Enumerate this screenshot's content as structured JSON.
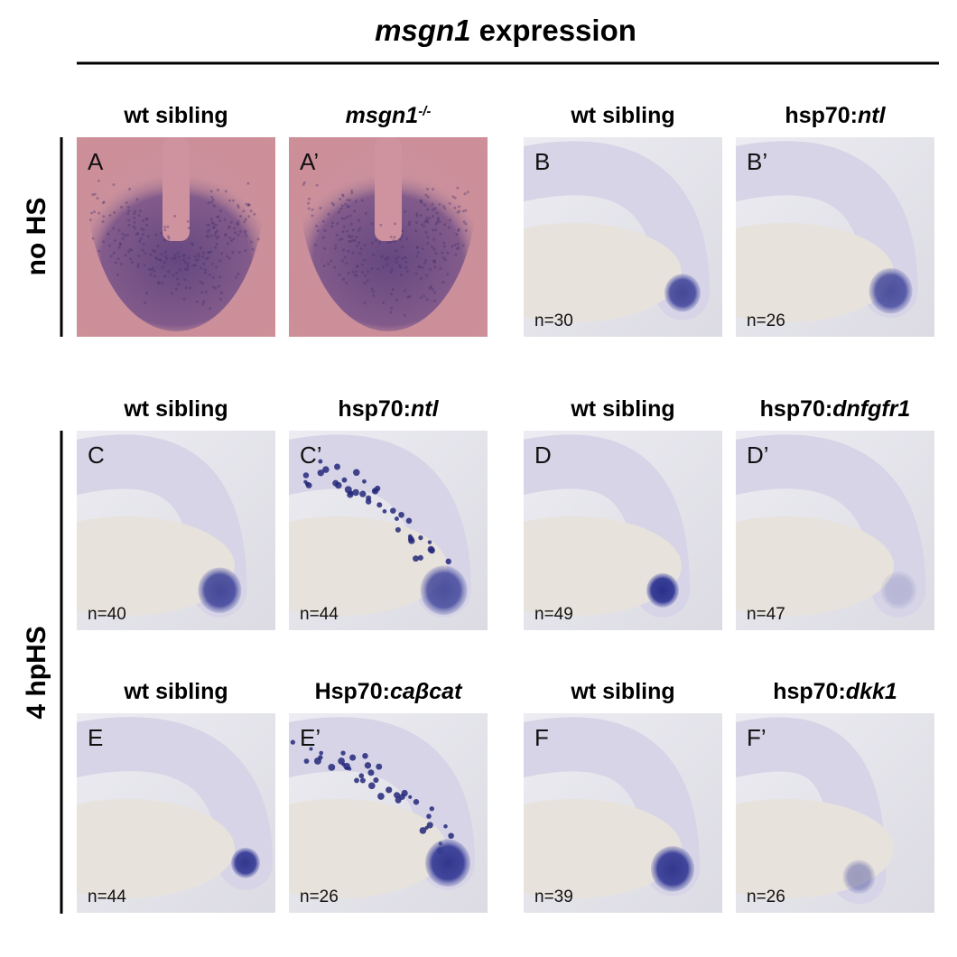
{
  "title": [
    {
      "text": "msgn1",
      "italic": true
    },
    {
      "text": " expression"
    }
  ],
  "side_labels": [
    "no HS",
    "4 hpHS"
  ],
  "panel_rows": [
    [
      {
        "header": [
          {
            "text": "wt sibling"
          }
        ],
        "letter": "A"
      },
      {
        "header": [
          {
            "text": "msgn1",
            "italic": true
          },
          {
            "text": "-/-",
            "italic": true,
            "sup": true
          }
        ],
        "letter": "A’"
      },
      {
        "header": [
          {
            "text": "wt sibling"
          }
        ],
        "letter": "B",
        "n": "n=30"
      },
      {
        "header": [
          {
            "text": "hsp70:"
          },
          {
            "text": "ntl",
            "italic": true
          }
        ],
        "letter": "B’",
        "n": "n=26"
      }
    ],
    [
      {
        "header": [
          {
            "text": "wt sibling"
          }
        ],
        "letter": "C",
        "n": "n=40"
      },
      {
        "header": [
          {
            "text": "hsp70:"
          },
          {
            "text": "ntl",
            "italic": true
          }
        ],
        "letter": "C’",
        "n": "n=44"
      },
      {
        "header": [
          {
            "text": "wt sibling"
          }
        ],
        "letter": "D",
        "n": "n=49"
      },
      {
        "header": [
          {
            "text": "hsp70:"
          },
          {
            "text": "dnfgfr1",
            "italic": true
          }
        ],
        "letter": "D’",
        "n": "n=47"
      }
    ],
    [
      {
        "header": [
          {
            "text": "wt sibling"
          }
        ],
        "letter": "E",
        "n": "n=44"
      },
      {
        "header": [
          {
            "text": "Hsp70:"
          },
          {
            "text": "caβcat",
            "italic": true
          }
        ],
        "letter": "E’",
        "n": "n=26"
      },
      {
        "header": [
          {
            "text": "wt sibling"
          }
        ],
        "letter": "F",
        "n": "n=39"
      },
      {
        "header": [
          {
            "text": "hsp70:"
          },
          {
            "text": "dkk1",
            "italic": true
          }
        ],
        "letter": "F’",
        "n": "n=26"
      }
    ]
  ]
}
